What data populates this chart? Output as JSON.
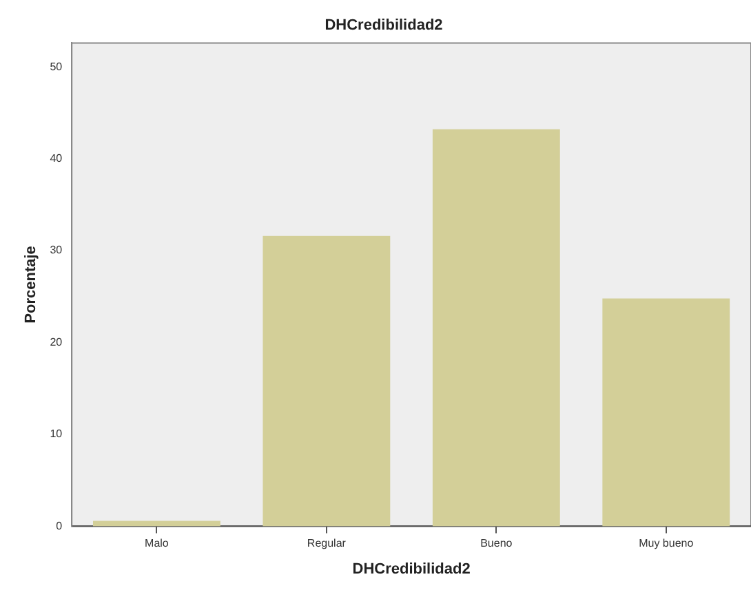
{
  "chart_data": {
    "type": "bar",
    "title": "DHCredibilidad2",
    "xlabel": "DHCredibilidad2",
    "ylabel": "Porcentaje",
    "categories": [
      "Malo",
      "Regular",
      "Bueno",
      "Muy bueno"
    ],
    "values": [
      0.6,
      31.6,
      43.2,
      24.8
    ],
    "color": "#d3cf98",
    "ylim": [
      0,
      52.6
    ],
    "yticks": [
      0,
      10,
      20,
      30,
      40,
      50
    ],
    "grid": false,
    "legend": false
  }
}
